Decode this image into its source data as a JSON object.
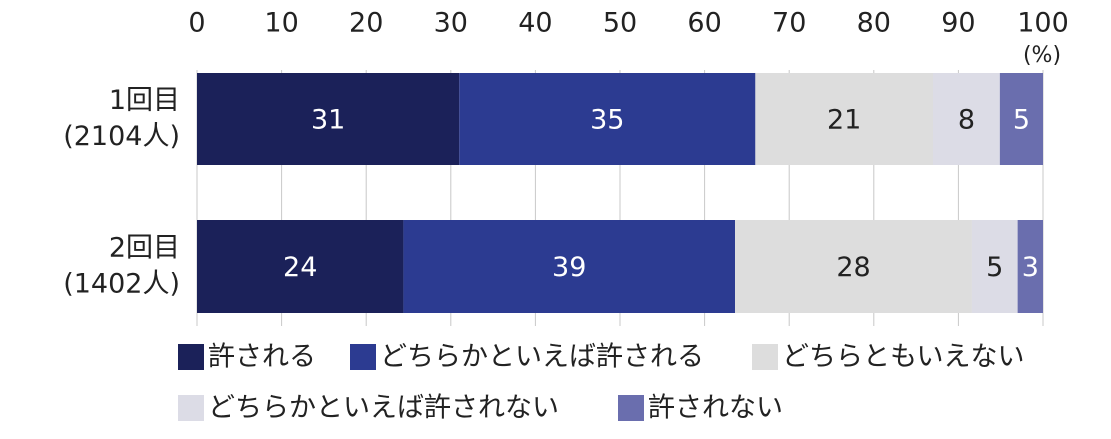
{
  "chart_data": {
    "type": "stacked-bar-horizontal",
    "categories": [
      "1回目\n(2104人)",
      "2回目\n(1402人)"
    ],
    "x_unit_label": "(%)",
    "xlim": [
      0,
      100
    ],
    "xticks": [
      0,
      10,
      20,
      30,
      40,
      50,
      60,
      70,
      80,
      90,
      100
    ],
    "grid": true,
    "series": [
      {
        "name": "許される",
        "color": "#1b2159",
        "values": [
          31,
          24.4
        ],
        "value_labels": [
          "31",
          "24"
        ]
      },
      {
        "name": "どちらかといえば許される",
        "color": "#2c3b91",
        "values": [
          35,
          39.2
        ],
        "value_labels": [
          "35",
          "39"
        ]
      },
      {
        "name": "どちらともいえない",
        "color": "#dddddd",
        "values": [
          21,
          28.0
        ],
        "value_labels": [
          "21",
          "28"
        ]
      },
      {
        "name": "どちらかといえば許されない",
        "color": "#dcdce6",
        "values": [
          7.9,
          5.4
        ],
        "value_labels": [
          "8",
          "5"
        ]
      },
      {
        "name": "許されない",
        "color": "#6a6eae",
        "values": [
          5.1,
          3.0
        ],
        "value_labels": [
          "5",
          "3"
        ]
      }
    ]
  }
}
